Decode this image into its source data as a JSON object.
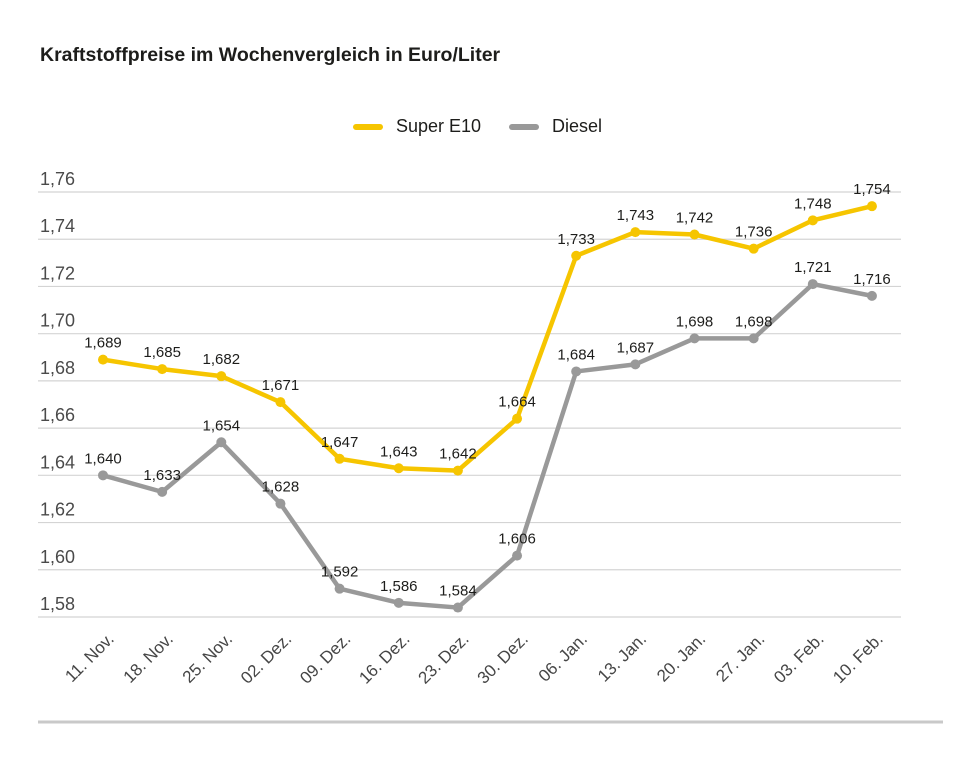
{
  "title": "Kraftstoffpreise im Wochenvergleich in Euro/Liter",
  "legend": [
    {
      "label": "Super E10",
      "color": "#F6C500"
    },
    {
      "label": "Diesel",
      "color": "#999999"
    }
  ],
  "chart_data": {
    "type": "line",
    "title": "Kraftstoffpreise im Wochenvergleich in Euro/Liter",
    "categories": [
      "11. Nov.",
      "18. Nov.",
      "25. Nov.",
      "02. Dez.",
      "09. Dez.",
      "16. Dez.",
      "23. Dez.",
      "30. Dez.",
      "06. Jan.",
      "13. Jan.",
      "20. Jan.",
      "27. Jan.",
      "03. Feb.",
      "10. Feb."
    ],
    "series": [
      {
        "name": "Super E10",
        "color": "#F6C500",
        "values": [
          1.689,
          1.685,
          1.682,
          1.671,
          1.647,
          1.643,
          1.642,
          1.664,
          1.733,
          1.743,
          1.742,
          1.736,
          1.748,
          1.754
        ]
      },
      {
        "name": "Diesel",
        "color": "#999999",
        "values": [
          1.64,
          1.633,
          1.654,
          1.628,
          1.592,
          1.586,
          1.584,
          1.606,
          1.684,
          1.687,
          1.698,
          1.698,
          1.721,
          1.716
        ]
      }
    ],
    "ylim": [
      1.58,
      1.76
    ],
    "ytick_step": 0.02,
    "ytick_labels": [
      "1,58",
      "1,60",
      "1,62",
      "1,64",
      "1,66",
      "1,68",
      "1,70",
      "1,72",
      "1,74",
      "1,76"
    ],
    "grid": true,
    "legend_position": "top",
    "data_labels": true,
    "decimal_separator": ",",
    "value_decimals": 3,
    "tick_decimals": 2,
    "xlabel": "",
    "ylabel": "Euro/Liter"
  }
}
